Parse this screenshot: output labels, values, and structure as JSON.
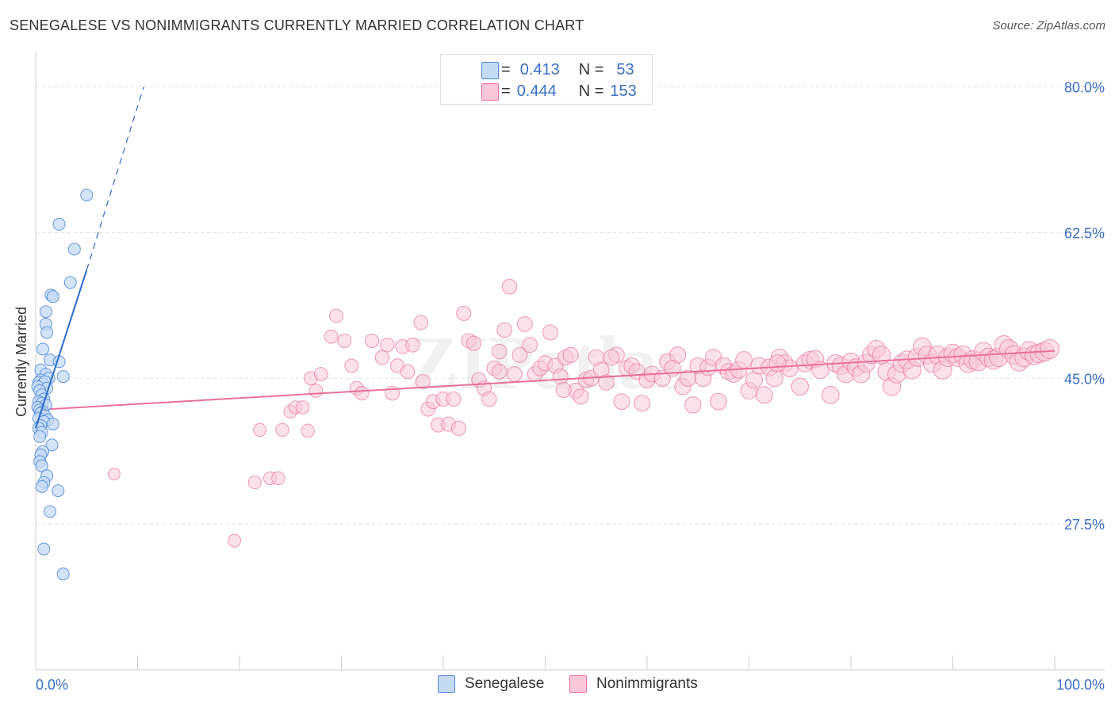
{
  "header": {
    "title": "SENEGALESE VS NONIMMIGRANTS CURRENTLY MARRIED CORRELATION CHART",
    "source": "Source: ZipAtlas.com"
  },
  "legend": {
    "rows": [
      {
        "r_label": "R =",
        "r_value": "0.413",
        "n_label": "N =",
        "n_value": "53"
      },
      {
        "r_label": "R =",
        "r_value": "0.444",
        "n_label": "N =",
        "n_value": "153"
      }
    ]
  },
  "bottom_legend": {
    "items": [
      "Senegalese",
      "Nonimmigrants"
    ]
  },
  "colors": {
    "blue": "#4a86d8",
    "blue_fill": "#c5dbf5",
    "pink": "#e8709a",
    "pink_fill": "#f8c8d8",
    "axis_label": "#3a6fc4"
  },
  "chart_data": {
    "type": "scatter",
    "title": "SENEGALESE VS NONIMMIGRANTS CURRENTLY MARRIED CORRELATION CHART",
    "xlabel": "",
    "ylabel": "Currently Married",
    "xlim": [
      0,
      100
    ],
    "ylim": [
      10,
      83
    ],
    "x_tick_labels": [
      "0.0%",
      "100.0%"
    ],
    "y_ticks": [
      27.5,
      45.0,
      62.5,
      80.0
    ],
    "y_tick_labels": [
      "27.5%",
      "45.0%",
      "62.5%",
      "80.0%"
    ],
    "grid": true,
    "watermark": "ZIPatlas",
    "series": [
      {
        "name": "Senegalese",
        "r": 0.413,
        "n": 53,
        "trend": {
          "x": [
            0,
            5.0
          ],
          "y": [
            39.0,
            58.0
          ],
          "dashed_to": {
            "x": 10.6,
            "y": 80.0
          }
        },
        "points": [
          [
            5.0,
            67.0
          ],
          [
            2.3,
            63.5
          ],
          [
            3.8,
            60.5
          ],
          [
            3.4,
            56.5
          ],
          [
            1.5,
            55.0
          ],
          [
            1.7,
            54.8
          ],
          [
            1.0,
            53.0
          ],
          [
            1.0,
            51.5
          ],
          [
            1.1,
            50.5
          ],
          [
            0.7,
            48.5
          ],
          [
            1.4,
            47.2
          ],
          [
            2.3,
            47.0
          ],
          [
            0.5,
            46.0
          ],
          [
            1.0,
            45.5
          ],
          [
            2.7,
            45.2
          ],
          [
            1.3,
            45.0
          ],
          [
            0.5,
            44.8
          ],
          [
            0.3,
            44.5
          ],
          [
            0.7,
            44.3
          ],
          [
            0.9,
            44.6
          ],
          [
            0.2,
            44.0
          ],
          [
            1.1,
            43.8
          ],
          [
            0.4,
            43.5
          ],
          [
            0.6,
            43.0
          ],
          [
            0.8,
            42.5
          ],
          [
            0.3,
            42.2
          ],
          [
            0.6,
            42.0
          ],
          [
            1.0,
            41.8
          ],
          [
            0.2,
            41.5
          ],
          [
            0.4,
            41.2
          ],
          [
            0.7,
            41.0
          ],
          [
            0.5,
            40.8
          ],
          [
            0.9,
            40.5
          ],
          [
            0.3,
            40.2
          ],
          [
            1.2,
            40.0
          ],
          [
            0.8,
            39.8
          ],
          [
            1.7,
            39.5
          ],
          [
            0.5,
            39.3
          ],
          [
            0.3,
            39.0
          ],
          [
            0.6,
            38.5
          ],
          [
            0.4,
            38.0
          ],
          [
            1.6,
            37.0
          ],
          [
            0.7,
            36.2
          ],
          [
            0.5,
            35.8
          ],
          [
            0.4,
            35.0
          ],
          [
            0.6,
            34.5
          ],
          [
            1.1,
            33.3
          ],
          [
            0.8,
            32.5
          ],
          [
            0.6,
            32.0
          ],
          [
            2.2,
            31.5
          ],
          [
            1.4,
            29.0
          ],
          [
            0.8,
            24.5
          ],
          [
            2.7,
            21.5
          ]
        ]
      },
      {
        "name": "Nonimmigrants",
        "r": 0.444,
        "n": 153,
        "trend": {
          "x": [
            0,
            100
          ],
          "y": [
            41.2,
            48.3
          ]
        },
        "points": [
          [
            7.7,
            33.5
          ],
          [
            19.5,
            25.5
          ],
          [
            21.5,
            32.5
          ],
          [
            22.0,
            38.8
          ],
          [
            23.0,
            33.0
          ],
          [
            23.8,
            33.0
          ],
          [
            24.2,
            38.8
          ],
          [
            25.0,
            41.0
          ],
          [
            25.5,
            41.5
          ],
          [
            26.2,
            41.5
          ],
          [
            26.7,
            38.7
          ],
          [
            27.0,
            45.0
          ],
          [
            27.5,
            43.5
          ],
          [
            28.0,
            45.5
          ],
          [
            29.0,
            50.0
          ],
          [
            29.5,
            52.5
          ],
          [
            30.3,
            49.5
          ],
          [
            31.0,
            46.5
          ],
          [
            31.5,
            43.8
          ],
          [
            32.0,
            43.2
          ],
          [
            33.0,
            49.5
          ],
          [
            34.0,
            47.5
          ],
          [
            34.5,
            49.0
          ],
          [
            35.0,
            43.2
          ],
          [
            35.5,
            46.5
          ],
          [
            36.0,
            48.8
          ],
          [
            36.5,
            45.8
          ],
          [
            37.0,
            49.0
          ],
          [
            37.8,
            51.7
          ],
          [
            38.0,
            44.6
          ],
          [
            38.5,
            41.3
          ],
          [
            39.0,
            42.2
          ],
          [
            39.5,
            39.4
          ],
          [
            40.0,
            42.5
          ],
          [
            40.5,
            39.5
          ],
          [
            41.0,
            42.5
          ],
          [
            41.5,
            39.0
          ],
          [
            42.0,
            52.8
          ],
          [
            42.5,
            49.5
          ],
          [
            43.0,
            49.2
          ],
          [
            43.5,
            44.8
          ],
          [
            44.0,
            43.8
          ],
          [
            44.5,
            42.5
          ],
          [
            45.0,
            46.2
          ],
          [
            45.5,
            48.2
          ],
          [
            46.0,
            50.8
          ],
          [
            46.5,
            56.0
          ],
          [
            47.0,
            45.5
          ],
          [
            47.5,
            47.8
          ],
          [
            48.0,
            51.5
          ],
          [
            48.5,
            49.0
          ],
          [
            49.0,
            45.5
          ],
          [
            49.5,
            46.2
          ],
          [
            50.0,
            46.8
          ],
          [
            50.5,
            50.5
          ],
          [
            51.0,
            46.5
          ],
          [
            51.5,
            45.2
          ],
          [
            52.0,
            47.5
          ],
          [
            52.5,
            47.8
          ],
          [
            53.0,
            43.5
          ],
          [
            53.5,
            42.8
          ],
          [
            54.0,
            44.8
          ],
          [
            54.5,
            45.0
          ],
          [
            55.0,
            47.5
          ],
          [
            55.5,
            46.0
          ],
          [
            56.0,
            44.5
          ],
          [
            57.0,
            47.8
          ],
          [
            57.5,
            42.2
          ],
          [
            58.0,
            46.2
          ],
          [
            58.5,
            46.5
          ],
          [
            59.0,
            45.8
          ],
          [
            59.5,
            42.0
          ],
          [
            60.0,
            44.8
          ],
          [
            60.5,
            45.5
          ],
          [
            61.5,
            45.0
          ],
          [
            62.0,
            47.0
          ],
          [
            63.0,
            47.8
          ],
          [
            63.5,
            44.0
          ],
          [
            64.0,
            45.0
          ],
          [
            64.5,
            41.8
          ],
          [
            65.0,
            46.5
          ],
          [
            65.5,
            45.0
          ],
          [
            66.0,
            46.3
          ],
          [
            66.5,
            47.5
          ],
          [
            67.0,
            42.2
          ],
          [
            67.5,
            46.5
          ],
          [
            68.0,
            45.8
          ],
          [
            68.5,
            45.5
          ],
          [
            69.0,
            46.0
          ],
          [
            69.5,
            47.2
          ],
          [
            70.0,
            43.5
          ],
          [
            70.5,
            44.8
          ],
          [
            71.0,
            46.5
          ],
          [
            71.5,
            43.0
          ],
          [
            72.0,
            46.3
          ],
          [
            72.5,
            45.0
          ],
          [
            73.0,
            47.5
          ],
          [
            73.5,
            46.8
          ],
          [
            74.0,
            46.2
          ],
          [
            75.0,
            44.0
          ],
          [
            75.5,
            46.8
          ],
          [
            76.0,
            47.2
          ],
          [
            76.5,
            47.3
          ],
          [
            77.0,
            46.0
          ],
          [
            78.0,
            43.0
          ],
          [
            78.5,
            46.8
          ],
          [
            79.0,
            46.5
          ],
          [
            79.5,
            45.5
          ],
          [
            80.0,
            47.0
          ],
          [
            80.5,
            46.3
          ],
          [
            81.0,
            45.5
          ],
          [
            81.5,
            46.8
          ],
          [
            82.0,
            47.8
          ],
          [
            82.5,
            48.5
          ],
          [
            83.0,
            47.8
          ],
          [
            83.5,
            45.8
          ],
          [
            84.0,
            44.0
          ],
          [
            84.5,
            45.5
          ],
          [
            85.0,
            46.8
          ],
          [
            85.5,
            47.2
          ],
          [
            86.0,
            46.0
          ],
          [
            86.5,
            47.5
          ],
          [
            87.0,
            48.8
          ],
          [
            87.5,
            47.8
          ],
          [
            88.0,
            46.8
          ],
          [
            88.5,
            47.8
          ],
          [
            89.0,
            46.0
          ],
          [
            89.5,
            47.5
          ],
          [
            90.0,
            48.0
          ],
          [
            90.5,
            47.5
          ],
          [
            91.0,
            47.8
          ],
          [
            91.5,
            46.8
          ],
          [
            92.0,
            47.2
          ],
          [
            92.5,
            47.0
          ],
          [
            93.0,
            48.2
          ],
          [
            93.5,
            47.5
          ],
          [
            94.0,
            47.2
          ],
          [
            94.5,
            47.5
          ],
          [
            95.0,
            49.0
          ],
          [
            95.5,
            48.5
          ],
          [
            96.0,
            47.8
          ],
          [
            96.5,
            47.0
          ],
          [
            97.0,
            47.5
          ],
          [
            97.5,
            48.3
          ],
          [
            98.0,
            47.8
          ],
          [
            98.5,
            48.0
          ],
          [
            99.0,
            48.2
          ],
          [
            99.5,
            48.5
          ],
          [
            45.5,
            45.8
          ],
          [
            56.5,
            47.5
          ],
          [
            62.5,
            46.2
          ],
          [
            72.8,
            46.8
          ],
          [
            51.8,
            43.6
          ]
        ]
      }
    ]
  }
}
